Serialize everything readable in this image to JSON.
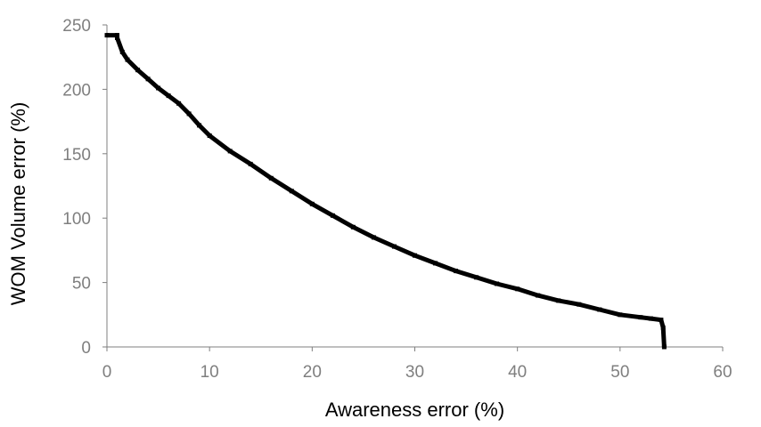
{
  "chart_data": {
    "type": "line",
    "title": "",
    "xlabel": "Awareness error (%)",
    "ylabel": "WOM Volume error (%)",
    "xlim": [
      0,
      60
    ],
    "ylim": [
      0,
      250
    ],
    "xticks": [
      0,
      10,
      20,
      30,
      40,
      50,
      60
    ],
    "yticks": [
      0,
      50,
      100,
      150,
      200,
      250
    ],
    "x_tick_labels": [
      "0",
      "10",
      "20",
      "30",
      "40",
      "50",
      "60"
    ],
    "y_tick_labels": [
      "0",
      "50",
      "100",
      "150",
      "200",
      "250"
    ],
    "grid": false,
    "legend": "none",
    "series": [
      {
        "color": "#000000",
        "x": [
          0,
          1,
          1,
          1.5,
          2,
          3,
          4,
          5,
          6,
          7,
          8,
          9,
          10,
          12,
          14,
          16,
          18,
          20,
          22,
          24,
          26,
          28,
          30,
          32,
          34,
          36,
          38,
          40,
          42,
          44,
          46,
          48,
          50,
          52,
          53,
          54,
          54.2,
          54.3
        ],
        "y": [
          242,
          242,
          240,
          229,
          223,
          215,
          208,
          201,
          195,
          189,
          181,
          172,
          164,
          152,
          142,
          131,
          121,
          111,
          102,
          93,
          85,
          78,
          71,
          65,
          59,
          54,
          49,
          45,
          40,
          36,
          33,
          29,
          25,
          23,
          22,
          21,
          15,
          0
        ]
      }
    ]
  }
}
